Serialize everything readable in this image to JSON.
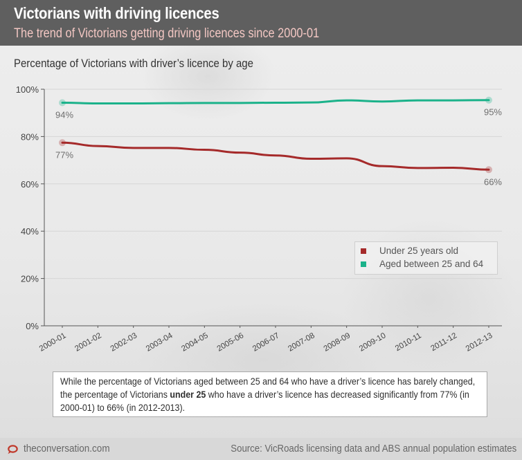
{
  "header": {
    "title": "Victorians with driving licences",
    "subtitle": "The trend of Victorians getting driving licences since 2000-01"
  },
  "colors": {
    "under25": "#a52a2a",
    "aged25to64": "#1bb28a",
    "header_bg": "#5f5f5f",
    "subtitle": "#f3c7c3"
  },
  "chart_data": {
    "type": "line",
    "title": "Percentage of Victorians with driver’s licence by age",
    "xlabel": "",
    "ylabel": "",
    "categories": [
      "2000-01",
      "2001-02",
      "2002-03",
      "2003-04",
      "2004-05",
      "2005-06",
      "2006-07",
      "2007-08",
      "2008-09",
      "2009-10",
      "2010-11",
      "2011-12",
      "2012-13"
    ],
    "ylim": [
      0,
      100
    ],
    "yticks": [
      0,
      20,
      40,
      60,
      80,
      100
    ],
    "ytick_labels": [
      "0%",
      "20%",
      "40%",
      "60%",
      "80%",
      "100%"
    ],
    "grid": true,
    "legend_position": "center-right",
    "series": [
      {
        "name": "Under 25 years old",
        "color": "#a52a2a",
        "values": [
          77.4,
          76.0,
          75.2,
          75.2,
          74.4,
          73.2,
          72.0,
          70.6,
          70.8,
          67.5,
          66.7,
          66.8,
          66.0
        ],
        "annotations": [
          {
            "index": 0,
            "text": "77%"
          },
          {
            "index": 12,
            "text": "66%"
          }
        ]
      },
      {
        "name": "Aged between 25 and 64",
        "color": "#1bb28a",
        "values": [
          94.3,
          94.0,
          94.0,
          94.1,
          94.2,
          94.2,
          94.3,
          94.4,
          95.3,
          94.8,
          95.3,
          95.3,
          95.4
        ],
        "annotations": [
          {
            "index": 0,
            "text": "94%"
          },
          {
            "index": 12,
            "text": "95%"
          }
        ]
      }
    ]
  },
  "legend": {
    "items": [
      {
        "label": "Under 25 years old",
        "color": "#a52a2a"
      },
      {
        "label": "Aged between 25 and 64",
        "color": "#1bb28a"
      }
    ]
  },
  "note": {
    "part1": "While the percentage of Victorians aged between 25 and 64 who have a driver’s licence has barely changed, the percentage of Victorians ",
    "bold": "under 25",
    "part2": " who have a driver’s licence has decreased significantly from 77% (in 2000-01) to 66% (in 2012-2013)."
  },
  "footer": {
    "logo_icon": "speech-bubble-icon",
    "site": "theconversation.com",
    "source": "Source: VicRoads licensing data and ABS annual population estimates"
  }
}
